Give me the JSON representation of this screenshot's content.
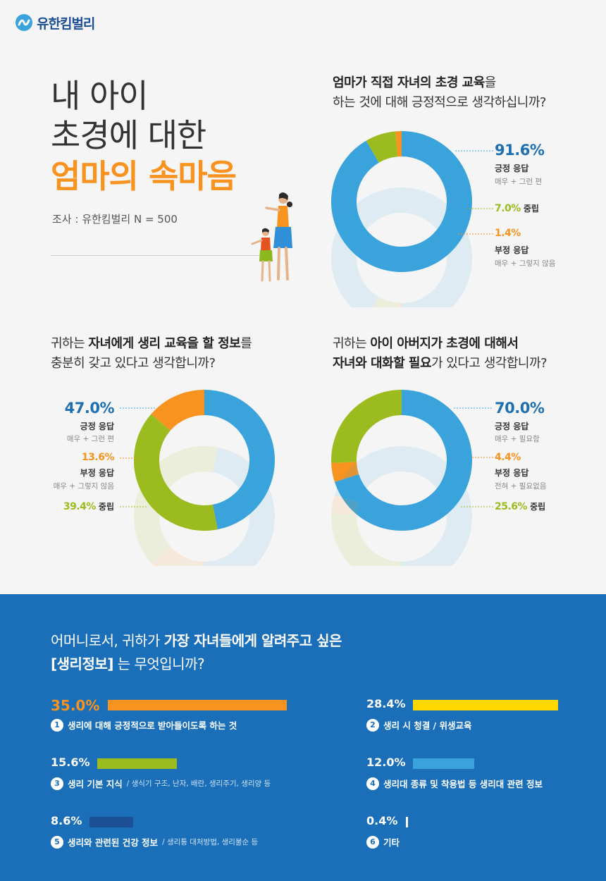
{
  "brand": {
    "name": "유한킴벌리"
  },
  "title": {
    "line1": "내 아이",
    "line2": "초경에 대한",
    "line3": "엄마의 속마음"
  },
  "survey": {
    "text": "조사 : 유한킴벌리  N = 500"
  },
  "colors": {
    "blue": "#3aa3dc",
    "green": "#9bbb1e",
    "orange": "#f7931e",
    "yellow": "#ffd800",
    "navy": "#1d4f97",
    "bottom_bg": "#1a6fb8"
  },
  "q1": {
    "line1_bold": "엄마가 직접 자녀의 초경 교육",
    "line1_rest": "을",
    "line2": "하는 것에 대해 긍정적으로 생각하십니까?"
  },
  "q2": {
    "pre": "귀하는 ",
    "bold": "자녀에게 생리 교육을 할 정보",
    "post": "를",
    "line2": "충분히 갖고 있다고 생각합니까?"
  },
  "q3": {
    "pre": "귀하는 ",
    "bold1": "아이 아버지가 초경에 대해서",
    "bold2": "자녀와 대화할 필요",
    "post": "가 있다고 생각합니까?"
  },
  "chart_data": [
    {
      "type": "pie",
      "values": [
        91.6,
        7.0,
        1.4
      ],
      "colors": [
        "#3aa3dc",
        "#9bbb1e",
        "#f7931e"
      ],
      "labels": [
        {
          "pct": "91.6%",
          "label": "긍정 응답",
          "sub": "매우 + 그런 편"
        },
        {
          "pct": "7.0%",
          "label": "중립",
          "sub": ""
        },
        {
          "pct": "1.4%",
          "label": "부정 응답",
          "sub": "매우 + 그렇지 않음"
        }
      ]
    },
    {
      "type": "pie",
      "values": [
        47.0,
        39.4,
        13.6
      ],
      "colors": [
        "#3aa3dc",
        "#9bbb1e",
        "#f7931e"
      ],
      "labels": [
        {
          "pct": "47.0%",
          "label": "긍정 응답",
          "sub": "매우 + 그런 편"
        },
        {
          "pct": "39.4%",
          "label": "중립",
          "sub": ""
        },
        {
          "pct": "13.6%",
          "label": "부정 응답",
          "sub": "매우 + 그렇지 않음"
        }
      ]
    },
    {
      "type": "pie",
      "values": [
        70.0,
        4.4,
        25.6
      ],
      "colors": [
        "#3aa3dc",
        "#f7931e",
        "#9bbb1e"
      ],
      "labels": [
        {
          "pct": "70.0%",
          "label": "긍정 응답",
          "sub": "매우 + 필요함"
        },
        {
          "pct": "4.4%",
          "label": "부정 응답",
          "sub": "전혀 + 필요없음"
        },
        {
          "pct": "25.6%",
          "label": "중립",
          "sub": ""
        }
      ]
    },
    {
      "type": "bar",
      "title": "어머니로서, 귀하가 가장 자녀들에게 알려주고 싶은 [생리정보] 는 무엇입니까?",
      "values": [
        35.0,
        28.4,
        15.6,
        12.0,
        8.6,
        0.4
      ],
      "colors": [
        "#f7931e",
        "#ffd800",
        "#9bbb1e",
        "#3aa3dc",
        "#1d4f97",
        "#ffffff"
      ]
    }
  ],
  "bottom": {
    "q_line1_pre": "어머니로서, 귀하가 ",
    "q_line1_bold": "가장 자녀들에게 알려주고 싶은",
    "q_line2_bold": "[생리정보]",
    "q_line2_rest": " 는 무엇입니까?",
    "items": [
      {
        "num": "1",
        "pct": "35.0%",
        "label": "생리에 대해 긍정적으로 받아들이도록 하는 것",
        "desc": ""
      },
      {
        "num": "2",
        "pct": "28.4%",
        "label": "생리 시 청결 / 위생교육",
        "desc": ""
      },
      {
        "num": "3",
        "pct": "15.6%",
        "label": "생리 기본 지식",
        "desc": "/ 생식기 구조, 난자, 배란, 생리주기, 생리양 등"
      },
      {
        "num": "4",
        "pct": "12.0%",
        "label": "생리대 종류 및 착용법 등 생리대 관련 정보",
        "desc": ""
      },
      {
        "num": "5",
        "pct": "8.6%",
        "label": "생리와 관련된 건강 정보",
        "desc": "/ 생리통 대처방법, 생리불순 등"
      },
      {
        "num": "6",
        "pct": "0.4%",
        "label": "기타",
        "desc": ""
      }
    ]
  }
}
